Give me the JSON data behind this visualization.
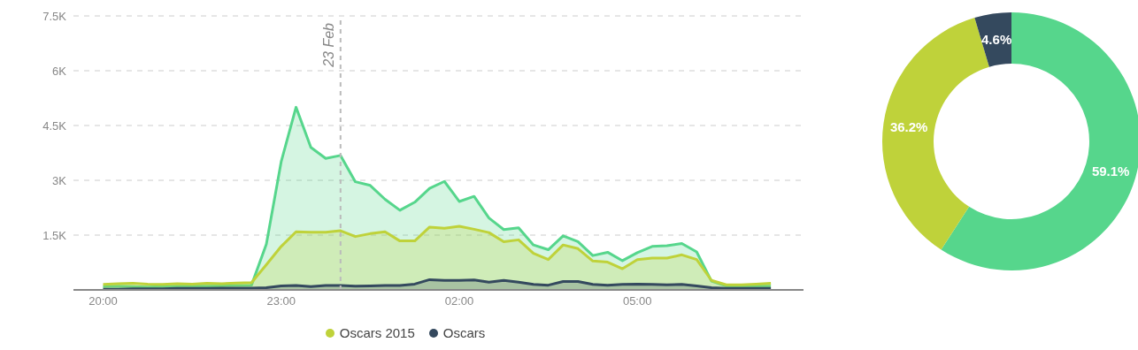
{
  "chart_data": [
    {
      "type": "area",
      "x": [
        "2015-02-22T20:00",
        "2015-02-22T20:15",
        "2015-02-22T20:30",
        "2015-02-22T20:45",
        "2015-02-22T21:00",
        "2015-02-22T21:15",
        "2015-02-22T21:30",
        "2015-02-22T21:45",
        "2015-02-22T22:00",
        "2015-02-22T22:15",
        "2015-02-22T22:30",
        "2015-02-22T22:45",
        "2015-02-22T23:00",
        "2015-02-22T23:15",
        "2015-02-22T23:30",
        "2015-02-22T23:45",
        "2015-02-23T00:00",
        "2015-02-23T00:15",
        "2015-02-23T00:30",
        "2015-02-23T00:45",
        "2015-02-23T01:00",
        "2015-02-23T01:15",
        "2015-02-23T01:30",
        "2015-02-23T01:45",
        "2015-02-23T02:00",
        "2015-02-23T02:15",
        "2015-02-23T02:30",
        "2015-02-23T02:45",
        "2015-02-23T03:00",
        "2015-02-23T03:15",
        "2015-02-23T03:30",
        "2015-02-23T03:45",
        "2015-02-23T04:00",
        "2015-02-23T04:15",
        "2015-02-23T04:30",
        "2015-02-23T04:45",
        "2015-02-23T05:00",
        "2015-02-23T05:15",
        "2015-02-23T05:30",
        "2015-02-23T05:45",
        "2015-02-23T06:00",
        "2015-02-23T06:15",
        "2015-02-23T06:30",
        "2015-02-23T06:45",
        "2015-02-23T07:00",
        "2015-02-23T07:15"
      ],
      "series": [
        {
          "color": "#56d68c",
          "values": [
            90,
            100,
            90,
            80,
            90,
            100,
            110,
            100,
            110,
            120,
            130,
            1250,
            3510,
            5000,
            3900,
            3600,
            3680,
            2960,
            2860,
            2480,
            2180,
            2400,
            2780,
            2970,
            2420,
            2560,
            1970,
            1650,
            1700,
            1230,
            1100,
            1480,
            1320,
            940,
            1030,
            800,
            1020,
            1190,
            1210,
            1270,
            1040,
            240,
            110,
            110,
            110,
            100
          ]
        },
        {
          "name": "Oscars 2015",
          "color": "#bfd23a",
          "values": [
            150,
            170,
            180,
            160,
            150,
            170,
            160,
            180,
            170,
            190,
            200,
            690,
            1190,
            1590,
            1580,
            1580,
            1620,
            1460,
            1540,
            1590,
            1340,
            1340,
            1720,
            1690,
            1740,
            1660,
            1570,
            1320,
            1370,
            1000,
            830,
            1230,
            1130,
            790,
            760,
            580,
            830,
            870,
            870,
            960,
            830,
            260,
            140,
            140,
            160,
            180
          ]
        },
        {
          "name": "Oscars",
          "color": "#34495e",
          "values": [
            20,
            20,
            30,
            30,
            30,
            40,
            40,
            40,
            50,
            50,
            50,
            60,
            110,
            120,
            90,
            120,
            120,
            100,
            110,
            120,
            120,
            160,
            280,
            260,
            260,
            270,
            210,
            260,
            210,
            150,
            130,
            230,
            230,
            150,
            130,
            150,
            160,
            150,
            140,
            150,
            110,
            60,
            40,
            40,
            40,
            40
          ]
        }
      ],
      "xlim": [
        "2015-02-22T19:30",
        "2015-02-23T07:48"
      ],
      "xticks": [
        {
          "value": "2015-02-22T20:00",
          "label": "20:00"
        },
        {
          "value": "2015-02-22T23:00",
          "label": "23:00"
        },
        {
          "value": "2015-02-23T02:00",
          "label": "02:00"
        },
        {
          "value": "2015-02-23T05:00",
          "label": "05:00"
        }
      ],
      "ylim": [
        0,
        7500
      ],
      "yticks": [
        {
          "value": 0,
          "label": null
        },
        {
          "value": 1500,
          "label": "1.5K"
        },
        {
          "value": 3000,
          "label": "3K"
        },
        {
          "value": 4500,
          "label": "4.5K"
        },
        {
          "value": 6000,
          "label": "6K"
        },
        {
          "value": 7500,
          "label": "7.5K"
        }
      ],
      "ref_lines": [
        {
          "axis": "x",
          "value": "2015-02-23T00:00",
          "label": "23 Feb",
          "color": "#bbbbbb",
          "line_style": "dashed"
        }
      ],
      "grid": "y",
      "legend": "bottom"
    },
    {
      "type": "donut",
      "categories": [
        null,
        null,
        null
      ],
      "values": [
        59.1,
        36.2,
        4.6
      ],
      "colors": [
        "#56d68c",
        "#bfd23a",
        "#34495e"
      ],
      "value_labels": [
        "59.1%",
        "36.2%",
        "4.6%"
      ],
      "legend": false
    }
  ]
}
